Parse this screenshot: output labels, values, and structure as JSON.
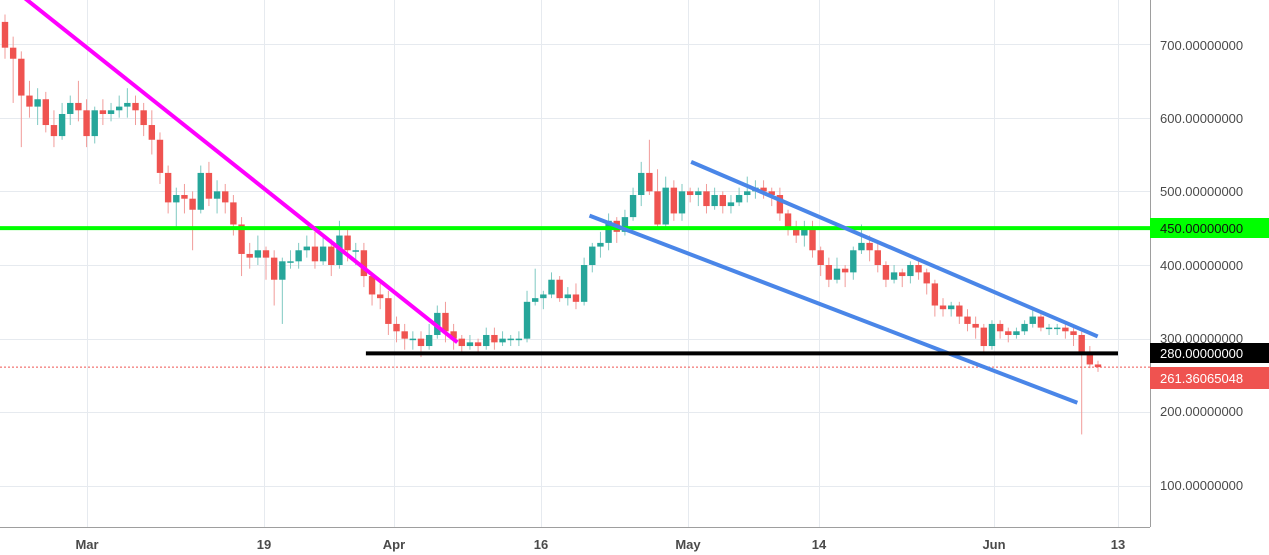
{
  "chart_data": {
    "type": "candlestick",
    "title": "",
    "x_axis": {
      "labels": [
        "Mar",
        "19",
        "Apr",
        "16",
        "May",
        "14",
        "Jun",
        "13"
      ],
      "start_date": "2018-02-23",
      "end_date": "2018-06-13"
    },
    "y_axis": {
      "ticks": [
        "700.00000000",
        "600.00000000",
        "500.00000000",
        "400.00000000",
        "300.00000000",
        "200.00000000",
        "100.00000000"
      ],
      "tick_values": [
        700,
        600,
        500,
        400,
        300,
        200,
        100
      ],
      "ylim": [
        32,
        775
      ],
      "position": "right"
    },
    "grid": true,
    "price_lines": [
      {
        "label": "450.00000000",
        "value": 450,
        "color": "#00ff00"
      },
      {
        "label": "280.00000000",
        "value": 280,
        "color": "#000000"
      },
      {
        "label": "261.36065048",
        "value": 261.36,
        "color": "#ef5350",
        "style": "dotted"
      }
    ],
    "trendlines": [
      {
        "name": "magenta-downtrend",
        "color": "#ff00ff",
        "from": {
          "date": "2018-02-24",
          "value": 778
        },
        "to": {
          "date": "2018-04-09",
          "value": 295
        }
      },
      {
        "name": "channel-upper",
        "color": "#4a86e8",
        "from": {
          "date": "2018-05-02",
          "value": 540
        },
        "to": {
          "date": "2018-06-11",
          "value": 303
        }
      },
      {
        "name": "channel-lower",
        "color": "#4a86e8",
        "from": {
          "date": "2018-04-22",
          "value": 467
        },
        "to": {
          "date": "2018-06-09",
          "value": 213
        }
      },
      {
        "name": "support-280",
        "color": "#000000",
        "from": {
          "date": "2018-03-31",
          "value": 280
        },
        "to": {
          "date": "2018-06-13",
          "value": 280
        }
      }
    ],
    "candles": [
      [
        730,
        695,
        740,
        680
      ],
      [
        695,
        680,
        710,
        620
      ],
      [
        680,
        630,
        690,
        560
      ],
      [
        630,
        615,
        650,
        600
      ],
      [
        615,
        625,
        640,
        590
      ],
      [
        625,
        590,
        635,
        580
      ],
      [
        590,
        575,
        610,
        560
      ],
      [
        575,
        605,
        620,
        570
      ],
      [
        605,
        620,
        630,
        590
      ],
      [
        620,
        610,
        650,
        595
      ],
      [
        610,
        575,
        625,
        560
      ],
      [
        575,
        610,
        615,
        565
      ],
      [
        610,
        605,
        625,
        590
      ],
      [
        605,
        610,
        620,
        595
      ],
      [
        610,
        615,
        630,
        600
      ],
      [
        615,
        620,
        640,
        600
      ],
      [
        620,
        610,
        630,
        590
      ],
      [
        610,
        590,
        620,
        575
      ],
      [
        590,
        570,
        610,
        550
      ],
      [
        570,
        525,
        580,
        510
      ],
      [
        525,
        485,
        535,
        470
      ],
      [
        485,
        495,
        505,
        450
      ],
      [
        495,
        490,
        510,
        470
      ],
      [
        490,
        475,
        500,
        420
      ],
      [
        475,
        525,
        535,
        470
      ],
      [
        525,
        490,
        540,
        480
      ],
      [
        490,
        500,
        515,
        470
      ],
      [
        500,
        485,
        510,
        470
      ],
      [
        485,
        455,
        495,
        440
      ],
      [
        455,
        415,
        465,
        385
      ],
      [
        415,
        410,
        430,
        395
      ],
      [
        410,
        420,
        440,
        400
      ],
      [
        420,
        410,
        425,
        380
      ],
      [
        410,
        380,
        420,
        345
      ],
      [
        380,
        405,
        410,
        320
      ],
      [
        405,
        405,
        420,
        395
      ],
      [
        405,
        420,
        430,
        395
      ],
      [
        420,
        425,
        440,
        410
      ],
      [
        425,
        405,
        445,
        395
      ],
      [
        405,
        425,
        440,
        400
      ],
      [
        425,
        400,
        435,
        385
      ],
      [
        400,
        440,
        460,
        395
      ],
      [
        440,
        420,
        450,
        405
      ],
      [
        420,
        420,
        430,
        400
      ],
      [
        420,
        385,
        430,
        370
      ],
      [
        385,
        360,
        390,
        345
      ],
      [
        360,
        355,
        375,
        340
      ],
      [
        355,
        320,
        365,
        305
      ],
      [
        320,
        310,
        330,
        295
      ],
      [
        310,
        300,
        320,
        285
      ],
      [
        300,
        300,
        310,
        285
      ],
      [
        300,
        290,
        310,
        275
      ],
      [
        290,
        305,
        320,
        285
      ],
      [
        305,
        335,
        345,
        300
      ],
      [
        335,
        310,
        350,
        295
      ],
      [
        310,
        300,
        320,
        285
      ],
      [
        300,
        290,
        305,
        280
      ],
      [
        290,
        295,
        305,
        285
      ],
      [
        295,
        290,
        300,
        280
      ],
      [
        290,
        305,
        315,
        285
      ],
      [
        305,
        295,
        315,
        285
      ],
      [
        295,
        300,
        310,
        290
      ],
      [
        300,
        300,
        305,
        290
      ],
      [
        300,
        300,
        310,
        290
      ],
      [
        300,
        350,
        365,
        295
      ],
      [
        350,
        355,
        395,
        345
      ],
      [
        355,
        360,
        365,
        340
      ],
      [
        360,
        380,
        390,
        355
      ],
      [
        380,
        355,
        385,
        350
      ],
      [
        355,
        360,
        370,
        345
      ],
      [
        360,
        350,
        375,
        340
      ],
      [
        350,
        400,
        410,
        345
      ],
      [
        400,
        425,
        430,
        390
      ],
      [
        425,
        430,
        445,
        410
      ],
      [
        430,
        460,
        470,
        420
      ],
      [
        460,
        445,
        465,
        430
      ],
      [
        445,
        465,
        475,
        440
      ],
      [
        465,
        495,
        505,
        460
      ],
      [
        495,
        525,
        540,
        480
      ],
      [
        525,
        500,
        570,
        495
      ],
      [
        500,
        455,
        530,
        450
      ],
      [
        455,
        505,
        520,
        450
      ],
      [
        505,
        470,
        515,
        460
      ],
      [
        470,
        500,
        510,
        460
      ],
      [
        500,
        495,
        505,
        485
      ],
      [
        495,
        500,
        505,
        480
      ],
      [
        500,
        480,
        510,
        470
      ],
      [
        480,
        495,
        505,
        475
      ],
      [
        495,
        480,
        500,
        470
      ],
      [
        480,
        485,
        495,
        470
      ],
      [
        485,
        495,
        505,
        480
      ],
      [
        495,
        500,
        520,
        485
      ],
      [
        500,
        505,
        515,
        490
      ],
      [
        505,
        500,
        515,
        490
      ],
      [
        500,
        495,
        505,
        480
      ],
      [
        495,
        470,
        505,
        460
      ],
      [
        470,
        450,
        475,
        440
      ],
      [
        450,
        440,
        460,
        430
      ],
      [
        440,
        450,
        460,
        425
      ],
      [
        450,
        420,
        460,
        410
      ],
      [
        420,
        400,
        425,
        385
      ],
      [
        400,
        380,
        410,
        370
      ],
      [
        380,
        395,
        410,
        375
      ],
      [
        395,
        390,
        400,
        370
      ],
      [
        390,
        420,
        425,
        380
      ],
      [
        420,
        430,
        455,
        415
      ],
      [
        430,
        420,
        440,
        405
      ],
      [
        420,
        400,
        430,
        390
      ],
      [
        400,
        380,
        405,
        370
      ],
      [
        380,
        390,
        400,
        375
      ],
      [
        390,
        385,
        395,
        370
      ],
      [
        385,
        400,
        405,
        375
      ],
      [
        400,
        390,
        410,
        380
      ],
      [
        390,
        375,
        395,
        360
      ],
      [
        375,
        345,
        380,
        330
      ],
      [
        345,
        340,
        355,
        330
      ],
      [
        340,
        345,
        350,
        330
      ],
      [
        345,
        330,
        350,
        320
      ],
      [
        330,
        320,
        340,
        310
      ],
      [
        320,
        315,
        330,
        300
      ],
      [
        315,
        290,
        320,
        280
      ],
      [
        290,
        320,
        325,
        285
      ],
      [
        320,
        310,
        325,
        300
      ],
      [
        310,
        305,
        315,
        295
      ],
      [
        305,
        310,
        315,
        300
      ],
      [
        310,
        320,
        325,
        305
      ],
      [
        320,
        330,
        340,
        315
      ],
      [
        330,
        315,
        335,
        310
      ],
      [
        315,
        315,
        320,
        305
      ],
      [
        315,
        315,
        320,
        305
      ],
      [
        315,
        310,
        320,
        300
      ],
      [
        310,
        305,
        315,
        290
      ],
      [
        305,
        280,
        310,
        170
      ],
      [
        280,
        265,
        290,
        260
      ],
      [
        265,
        261.36,
        270,
        255
      ]
    ],
    "colors": {
      "up": "#26a69a",
      "down": "#ef5350",
      "up_wick": "#7fc9c2",
      "down_wick": "#f19b99"
    }
  },
  "axis": {
    "y_labels": [
      "700.00000000",
      "600.00000000",
      "500.00000000",
      "400.00000000",
      "300.00000000",
      "200.00000000",
      "100.00000000"
    ],
    "x_labels": [
      "Mar",
      "19",
      "Apr",
      "16",
      "May",
      "14",
      "Jun",
      "13"
    ],
    "badge_450": "450.00000000",
    "badge_280": "280.00000000",
    "badge_last": "261.36065048"
  }
}
